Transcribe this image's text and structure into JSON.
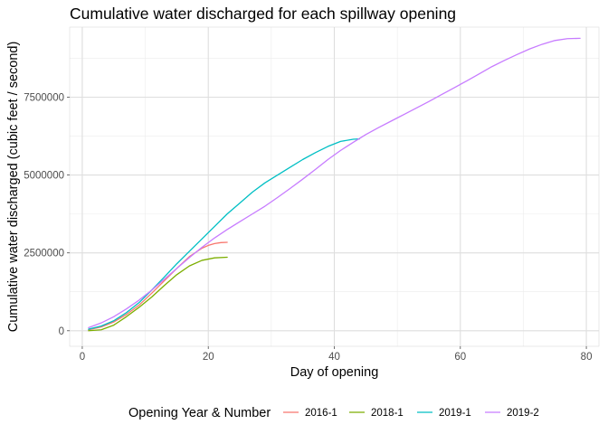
{
  "chart_data": {
    "type": "line",
    "title": "Cumulative water discharged for each spillway opening",
    "xlabel": "Day of opening",
    "ylabel": "Cumulative water discharged (cubic feet / second)",
    "xlim": [
      -2,
      82
    ],
    "ylim": [
      -500000,
      9750000
    ],
    "x_ticks": [
      0,
      20,
      40,
      60,
      80
    ],
    "y_ticks": [
      0,
      2500000,
      5000000,
      7500000
    ],
    "y_tick_labels": [
      "0",
      "2500000",
      "5000000",
      "7500000"
    ],
    "grid": true,
    "legend": {
      "title": "Opening Year & Number",
      "position": "bottom"
    },
    "series": [
      {
        "name": "2016-1",
        "color": "#F8766D",
        "points": [
          [
            1,
            30000
          ],
          [
            3,
            120000
          ],
          [
            5,
            280000
          ],
          [
            7,
            520000
          ],
          [
            9,
            820000
          ],
          [
            11,
            1200000
          ],
          [
            13,
            1600000
          ],
          [
            15,
            2000000
          ],
          [
            17,
            2380000
          ],
          [
            19,
            2650000
          ],
          [
            20,
            2740000
          ],
          [
            21,
            2800000
          ],
          [
            22,
            2830000
          ],
          [
            23,
            2840000
          ]
        ]
      },
      {
        "name": "2018-1",
        "color": "#7CAE00",
        "points": [
          [
            1,
            0
          ],
          [
            3,
            30000
          ],
          [
            5,
            180000
          ],
          [
            7,
            450000
          ],
          [
            9,
            750000
          ],
          [
            11,
            1080000
          ],
          [
            13,
            1450000
          ],
          [
            15,
            1800000
          ],
          [
            17,
            2080000
          ],
          [
            19,
            2260000
          ],
          [
            21,
            2340000
          ],
          [
            23,
            2360000
          ]
        ]
      },
      {
        "name": "2019-1",
        "color": "#00BFC4",
        "points": [
          [
            1,
            50000
          ],
          [
            3,
            150000
          ],
          [
            5,
            320000
          ],
          [
            7,
            580000
          ],
          [
            9,
            900000
          ],
          [
            11,
            1300000
          ],
          [
            13,
            1720000
          ],
          [
            15,
            2150000
          ],
          [
            17,
            2550000
          ],
          [
            19,
            2950000
          ],
          [
            21,
            3350000
          ],
          [
            23,
            3750000
          ],
          [
            25,
            4100000
          ],
          [
            27,
            4450000
          ],
          [
            29,
            4750000
          ],
          [
            31,
            5000000
          ],
          [
            33,
            5250000
          ],
          [
            35,
            5500000
          ],
          [
            37,
            5720000
          ],
          [
            39,
            5920000
          ],
          [
            41,
            6080000
          ],
          [
            43,
            6150000
          ],
          [
            44,
            6160000
          ]
        ]
      },
      {
        "name": "2019-2",
        "color": "#C77CFF",
        "points": [
          [
            1,
            100000
          ],
          [
            3,
            250000
          ],
          [
            5,
            450000
          ],
          [
            7,
            700000
          ],
          [
            9,
            980000
          ],
          [
            11,
            1300000
          ],
          [
            13,
            1650000
          ],
          [
            15,
            2000000
          ],
          [
            17,
            2350000
          ],
          [
            19,
            2680000
          ],
          [
            21,
            2980000
          ],
          [
            23,
            3250000
          ],
          [
            25,
            3500000
          ],
          [
            27,
            3750000
          ],
          [
            29,
            4000000
          ],
          [
            31,
            4280000
          ],
          [
            33,
            4570000
          ],
          [
            35,
            4870000
          ],
          [
            37,
            5180000
          ],
          [
            39,
            5500000
          ],
          [
            41,
            5790000
          ],
          [
            43,
            6050000
          ],
          [
            45,
            6300000
          ],
          [
            47,
            6520000
          ],
          [
            49,
            6730000
          ],
          [
            51,
            6940000
          ],
          [
            53,
            7150000
          ],
          [
            55,
            7360000
          ],
          [
            57,
            7580000
          ],
          [
            59,
            7800000
          ],
          [
            61,
            8020000
          ],
          [
            63,
            8250000
          ],
          [
            65,
            8480000
          ],
          [
            67,
            8680000
          ],
          [
            69,
            8870000
          ],
          [
            71,
            9050000
          ],
          [
            73,
            9200000
          ],
          [
            75,
            9320000
          ],
          [
            77,
            9380000
          ],
          [
            79,
            9390000
          ]
        ]
      }
    ]
  }
}
